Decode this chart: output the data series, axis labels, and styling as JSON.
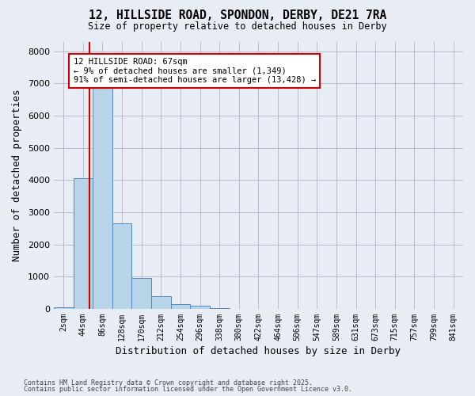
{
  "title_line1": "12, HILLSIDE ROAD, SPONDON, DERBY, DE21 7RA",
  "title_line2": "Size of property relative to detached houses in Derby",
  "xlabel": "Distribution of detached houses by size in Derby",
  "ylabel": "Number of detached properties",
  "bar_labels": [
    "2sqm",
    "44sqm",
    "86sqm",
    "128sqm",
    "170sqm",
    "212sqm",
    "254sqm",
    "296sqm",
    "338sqm",
    "380sqm",
    "422sqm",
    "464sqm",
    "506sqm",
    "547sqm",
    "589sqm",
    "631sqm",
    "673sqm",
    "715sqm",
    "757sqm",
    "799sqm",
    "841sqm"
  ],
  "bar_values": [
    50,
    4050,
    7400,
    2650,
    950,
    400,
    150,
    100,
    20,
    5,
    3,
    1,
    0,
    0,
    0,
    0,
    0,
    0,
    0,
    0,
    0
  ],
  "bar_color": "#b8d4e8",
  "bar_edge_color": "#5588bb",
  "bar_edge_width": 0.7,
  "grid_color": "#bbbbcc",
  "background_color": "#e8edf5",
  "vline_x_index": 1.35,
  "vline_color": "#cc0000",
  "annotation_text": "12 HILLSIDE ROAD: 67sqm\n← 9% of detached houses are smaller (1,349)\n91% of semi-detached houses are larger (13,428) →",
  "annotation_box_color": "#ffffff",
  "annotation_box_edge": "#cc0000",
  "ylim": [
    0,
    8300
  ],
  "yticks": [
    0,
    1000,
    2000,
    3000,
    4000,
    5000,
    6000,
    7000,
    8000
  ],
  "footnote1": "Contains HM Land Registry data © Crown copyright and database right 2025.",
  "footnote2": "Contains public sector information licensed under the Open Government Licence v3.0."
}
